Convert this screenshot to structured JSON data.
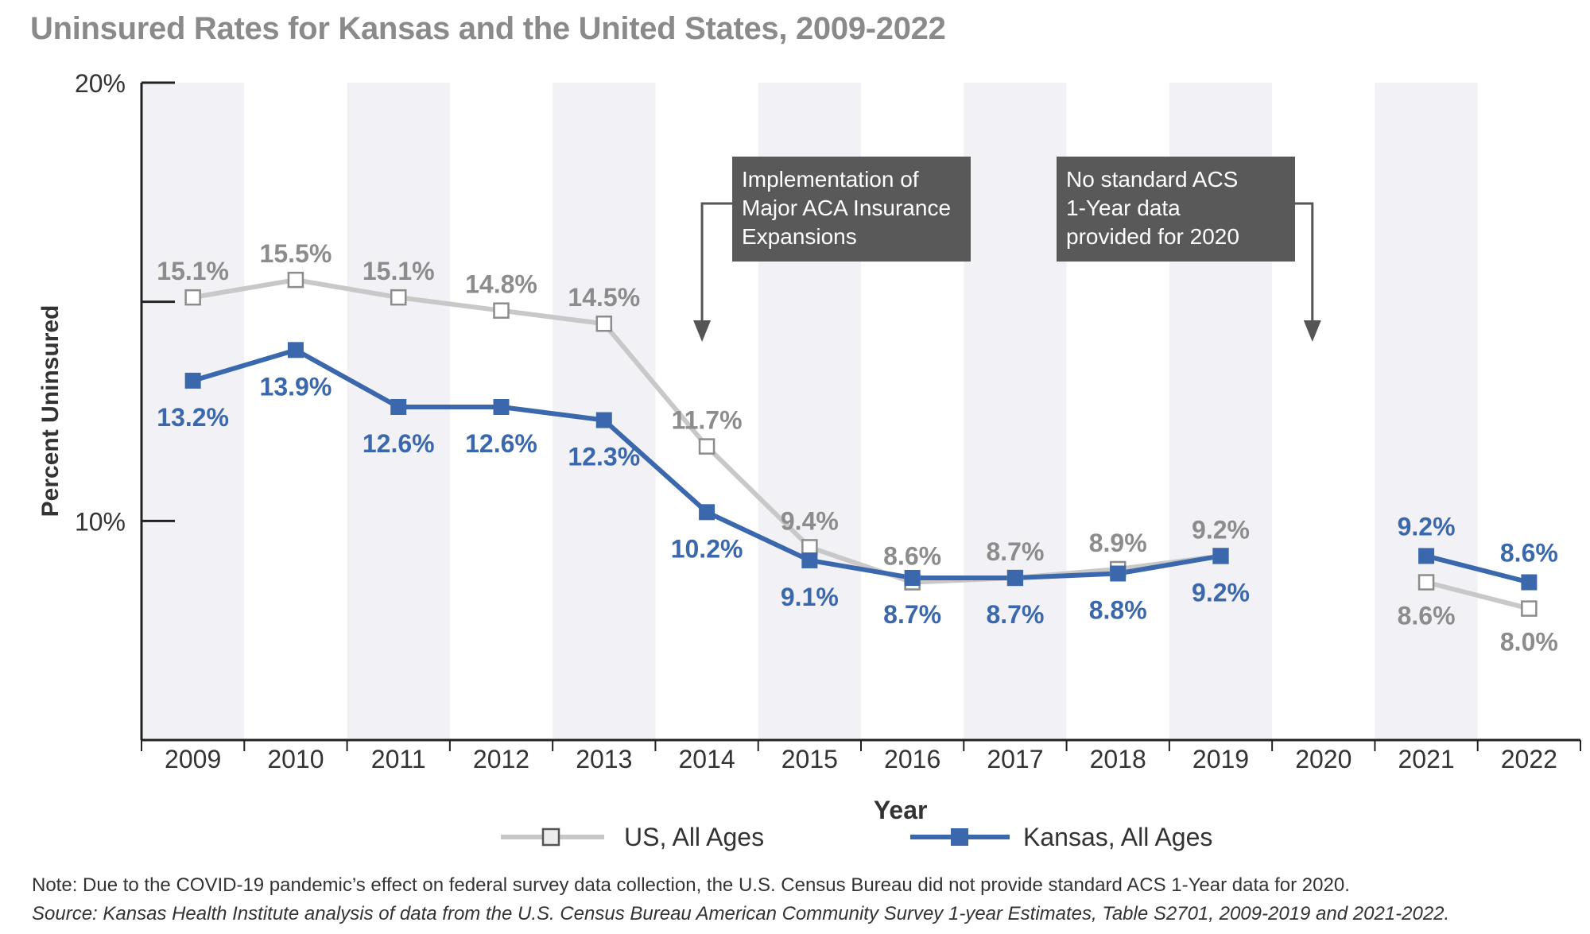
{
  "title": "Uninsured Rates for Kansas and the United States, 2009-2022",
  "note": "Note: Due to the COVID-19 pandemic’s effect on federal survey data collection, the U.S. Census Bureau did not provide standard ACS 1-Year data for 2020.",
  "source": "Source: Kansas Health Institute analysis of data from the U.S. Census Bureau American Community Survey 1-year Estimates, Table S2701, 2009-2019 and 2021-2022.",
  "annotations": [
    {
      "lines": [
        "Implementation of",
        "Major ACA Insurance",
        "Expansions"
      ],
      "target_year": "2014"
    },
    {
      "lines": [
        "No standard ACS",
        "1-Year data",
        "provided for 2020"
      ],
      "target_year": "2020"
    }
  ],
  "colors": {
    "us": "#c8c8c8",
    "kansas": "#3b68ad",
    "us_label": "#8c8c8c",
    "band": "#f2f2f6",
    "annotation_box": "#595959",
    "axis": "#222222"
  },
  "chart_data": {
    "type": "line",
    "xlabel": "Year",
    "ylabel": "Percent Uninsured",
    "ylim": [
      5,
      20
    ],
    "y_ticks": [
      {
        "value": 20,
        "label": "20%"
      },
      {
        "value": 15,
        "label": ""
      },
      {
        "value": 10,
        "label": "10%"
      },
      {
        "value": 5,
        "label": ""
      }
    ],
    "categories": [
      "2009",
      "2010",
      "2011",
      "2012",
      "2013",
      "2014",
      "2015",
      "2016",
      "2017",
      "2018",
      "2019",
      "2020",
      "2021",
      "2022"
    ],
    "grid": false,
    "legend": "bottom",
    "series": [
      {
        "name": "US, All Ages",
        "values": [
          15.1,
          15.5,
          15.1,
          14.8,
          14.5,
          11.7,
          9.4,
          8.6,
          8.7,
          8.9,
          9.2,
          null,
          8.6,
          8.0
        ],
        "labels": [
          "15.1%",
          "15.5%",
          "15.1%",
          "14.8%",
          "14.5%",
          "11.7%",
          "9.4%",
          "8.6%",
          "8.7%",
          "8.9%",
          "9.2%",
          "",
          "8.6%",
          "8.0%"
        ]
      },
      {
        "name": "Kansas, All Ages",
        "values": [
          13.2,
          13.9,
          12.6,
          12.6,
          12.3,
          10.2,
          9.1,
          8.7,
          8.7,
          8.8,
          9.2,
          null,
          9.2,
          8.6
        ],
        "labels": [
          "13.2%",
          "13.9%",
          "12.6%",
          "12.6%",
          "12.3%",
          "10.2%",
          "9.1%",
          "8.7%",
          "8.7%",
          "8.8%",
          "9.2%",
          "",
          "9.2%",
          "8.6%"
        ]
      }
    ]
  }
}
